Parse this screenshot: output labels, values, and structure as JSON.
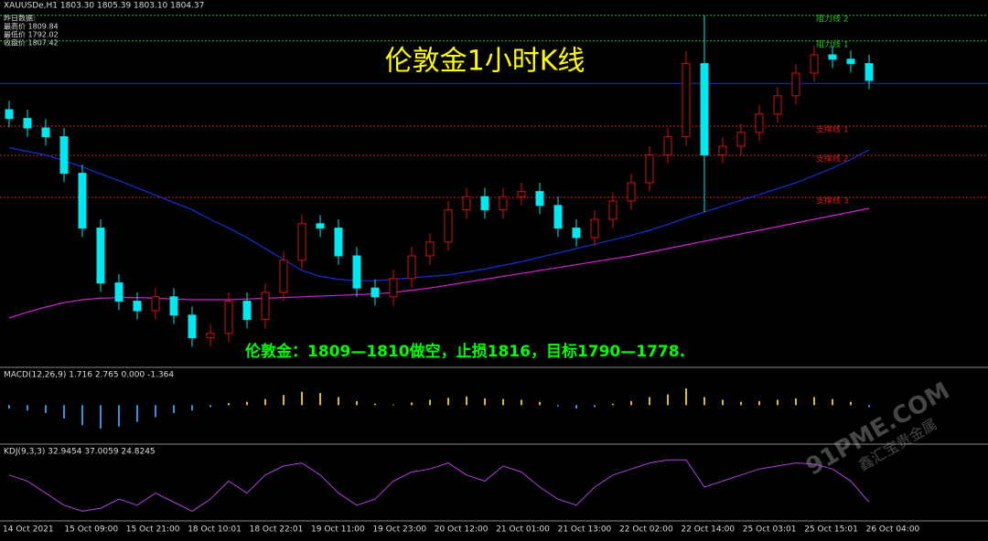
{
  "chart_data": {
    "type": "candlestick",
    "header": "XAUUSDe,H1  1803.30 1805.39 1803.10 1804.37",
    "info_title": "昨日数据:",
    "info_lines": [
      "最高价 1809.84",
      "最低价 1792.02",
      "收盘价 1807.42"
    ],
    "title": "伦敦金1小时K线",
    "annotation": "伦敦金：1809—1810做空，止损1816，目标1790—1778.",
    "watermark": "91PME.COM",
    "watermark_sub": "鑫汇宝贵金属",
    "ylim": [
      1766,
      1816
    ],
    "up_color": "#d01010",
    "down_color": "#00e8f0",
    "open": [
      1801,
      1799.8,
      1798.5,
      1797.3,
      1792.3,
      1784.8,
      1777.3,
      1774.8,
      1773.5,
      1775.4,
      1772.9,
      1769.8,
      1770.4,
      1774.8,
      1772.3,
      1776,
      1780.4,
      1785.4,
      1784.8,
      1781,
      1776.6,
      1775.4,
      1777.9,
      1781,
      1782.9,
      1787.3,
      1789.1,
      1787.3,
      1789.1,
      1789.8,
      1787.9,
      1784.8,
      1783.5,
      1786,
      1788.5,
      1791,
      1794.8,
      1797.3,
      1807.3,
      1794.8,
      1796,
      1797.9,
      1800.4,
      1802.9,
      1806,
      1808.5,
      1807.9,
      1807.3
    ],
    "high": [
      1802.2,
      1801,
      1799.7,
      1798.5,
      1793.5,
      1786,
      1778.5,
      1776,
      1776.6,
      1776.6,
      1774.1,
      1771.6,
      1776,
      1776,
      1777.2,
      1781.6,
      1786.6,
      1786.6,
      1786,
      1782.2,
      1777.8,
      1779.1,
      1782.2,
      1784.1,
      1788.5,
      1790.3,
      1790.3,
      1790.3,
      1791,
      1791,
      1789.1,
      1786,
      1787.2,
      1789.7,
      1792.2,
      1796,
      1798.5,
      1809,
      1813.9,
      1797.2,
      1799.1,
      1801.6,
      1804.1,
      1807.2,
      1809.7,
      1809.7,
      1809.1,
      1808.5
    ],
    "low": [
      1798.6,
      1797.3,
      1796.1,
      1791.1,
      1783.6,
      1776.1,
      1773.6,
      1772.3,
      1772.3,
      1771.7,
      1768.6,
      1768.6,
      1769.2,
      1771.1,
      1771.1,
      1774.8,
      1779.2,
      1783.6,
      1779.8,
      1775.4,
      1774.2,
      1774.2,
      1776.7,
      1779.8,
      1781.7,
      1786.1,
      1786.1,
      1786.1,
      1787.9,
      1786.7,
      1783.6,
      1782.3,
      1782.3,
      1784.8,
      1787.3,
      1789.8,
      1793.6,
      1796.1,
      1787,
      1793.6,
      1794.8,
      1796.7,
      1799.2,
      1801.7,
      1804.8,
      1806.7,
      1806.1,
      1803.8
    ],
    "close": [
      1799.8,
      1798.5,
      1797.3,
      1792.3,
      1784.8,
      1777.3,
      1774.8,
      1773.5,
      1775.4,
      1772.9,
      1769.8,
      1770.4,
      1774.8,
      1772.3,
      1776,
      1780.4,
      1785.4,
      1784.8,
      1781,
      1776.6,
      1775.4,
      1777.9,
      1781,
      1782.9,
      1787.3,
      1789.1,
      1787.3,
      1789.1,
      1789.8,
      1787.9,
      1784.8,
      1783.5,
      1786,
      1788.5,
      1791,
      1794.8,
      1797.3,
      1807.3,
      1794.8,
      1796,
      1797.9,
      1800.4,
      1802.9,
      1806,
      1808.5,
      1807.9,
      1807.3,
      1805
    ],
    "overlays": [
      {
        "color": "#1a2fd8",
        "values": [
          1795.8,
          1795.3,
          1794.8,
          1794,
          1793.2,
          1792.2,
          1791.3,
          1790.3,
          1789.3,
          1788.3,
          1787.3,
          1786,
          1784.8,
          1783.5,
          1782,
          1780.5,
          1779,
          1778.2,
          1777.8,
          1777.6,
          1777.6,
          1777.8,
          1778,
          1778.2,
          1778.4,
          1778.8,
          1779.2,
          1779.7,
          1780.2,
          1780.8,
          1781.4,
          1782,
          1782.6,
          1783.2,
          1783.8,
          1784.5,
          1785.3,
          1786.2,
          1787,
          1787.8,
          1788.6,
          1789.4,
          1790.2,
          1791,
          1792,
          1793,
          1794.2,
          1795.5
        ]
      },
      {
        "color": "#d020d0",
        "values": [
          1772.5,
          1773.3,
          1774,
          1774.6,
          1775,
          1775.2,
          1775.3,
          1775.3,
          1775.2,
          1775.1,
          1775,
          1775,
          1775,
          1775.1,
          1775.2,
          1775.3,
          1775.4,
          1775.5,
          1775.6,
          1775.7,
          1775.8,
          1776,
          1776.3,
          1776.6,
          1777,
          1777.4,
          1777.8,
          1778.2,
          1778.6,
          1779,
          1779.4,
          1779.8,
          1780.2,
          1780.6,
          1781,
          1781.5,
          1782,
          1782.5,
          1783,
          1783.5,
          1784,
          1784.5,
          1785,
          1785.5,
          1786,
          1786.5,
          1787,
          1787.5
        ]
      }
    ],
    "price_line": {
      "value": 1804.6,
      "color": "#2020ff"
    },
    "levels": [
      {
        "label": "阻力线 2",
        "value": 1813.9,
        "color": "#22c022"
      },
      {
        "label": "阻力线 1",
        "value": 1810.4,
        "color": "#22c022"
      },
      {
        "label": "支撑线 1",
        "value": 1798.75,
        "color": "#d02020"
      },
      {
        "label": "支撑线 2",
        "value": 1794.75,
        "color": "#d02020"
      },
      {
        "label": "支撑线 3",
        "value": 1789,
        "color": "#d02020"
      }
    ],
    "macd": {
      "label": "MACD(12,26,9) 1.716 2.765 0.000 -1.364",
      "ylim": [
        -5,
        4
      ],
      "pos_color": "#d8c020",
      "neg_color": "#3a8fe0",
      "values": [
        -0.5,
        -0.8,
        -1.2,
        -2,
        -3,
        -3.5,
        -3.2,
        -2.5,
        -1.8,
        -1.2,
        -0.8,
        -0.3,
        0.3,
        0.5,
        0.9,
        1.5,
        2,
        1.8,
        1.2,
        0.6,
        0.2,
        0.1,
        0.4,
        0.8,
        1.1,
        1.3,
        1,
        0.9,
        0.8,
        0.5,
        -0.2,
        -0.5,
        -0.3,
        0.2,
        0.6,
        1.2,
        1.6,
        2.5,
        1.2,
        0.8,
        0.5,
        0.6,
        0.8,
        1,
        1.2,
        0.9,
        0.5,
        -0.3
      ]
    },
    "kdj": {
      "label": "KDJ(9,3,3) 32.9454 37.0059 24.8245",
      "ylim": [
        0,
        100
      ],
      "color": "#b040e0",
      "values": [
        70,
        60,
        40,
        20,
        10,
        15,
        30,
        20,
        40,
        25,
        10,
        30,
        60,
        40,
        70,
        85,
        90,
        70,
        40,
        20,
        30,
        60,
        75,
        80,
        90,
        70,
        60,
        85,
        75,
        50,
        30,
        20,
        50,
        70,
        80,
        90,
        95,
        95,
        50,
        60,
        70,
        80,
        85,
        90,
        88,
        80,
        60,
        25
      ]
    },
    "x_labels": [
      "14 Oct 2021",
      "15 Oct 09:00",
      "15 Oct 21:00",
      "18 Oct 10:01",
      "18 Oct 22:01",
      "19 Oct 11:00",
      "19 Oct 23:00",
      "20 Oct 12:00",
      "21 Oct 01:00",
      "21 Oct 13:00",
      "22 Oct 02:00",
      "22 Oct 14:00",
      "25 Oct 03:01",
      "25 Oct 15:01",
      "26 Oct 04:00"
    ]
  }
}
